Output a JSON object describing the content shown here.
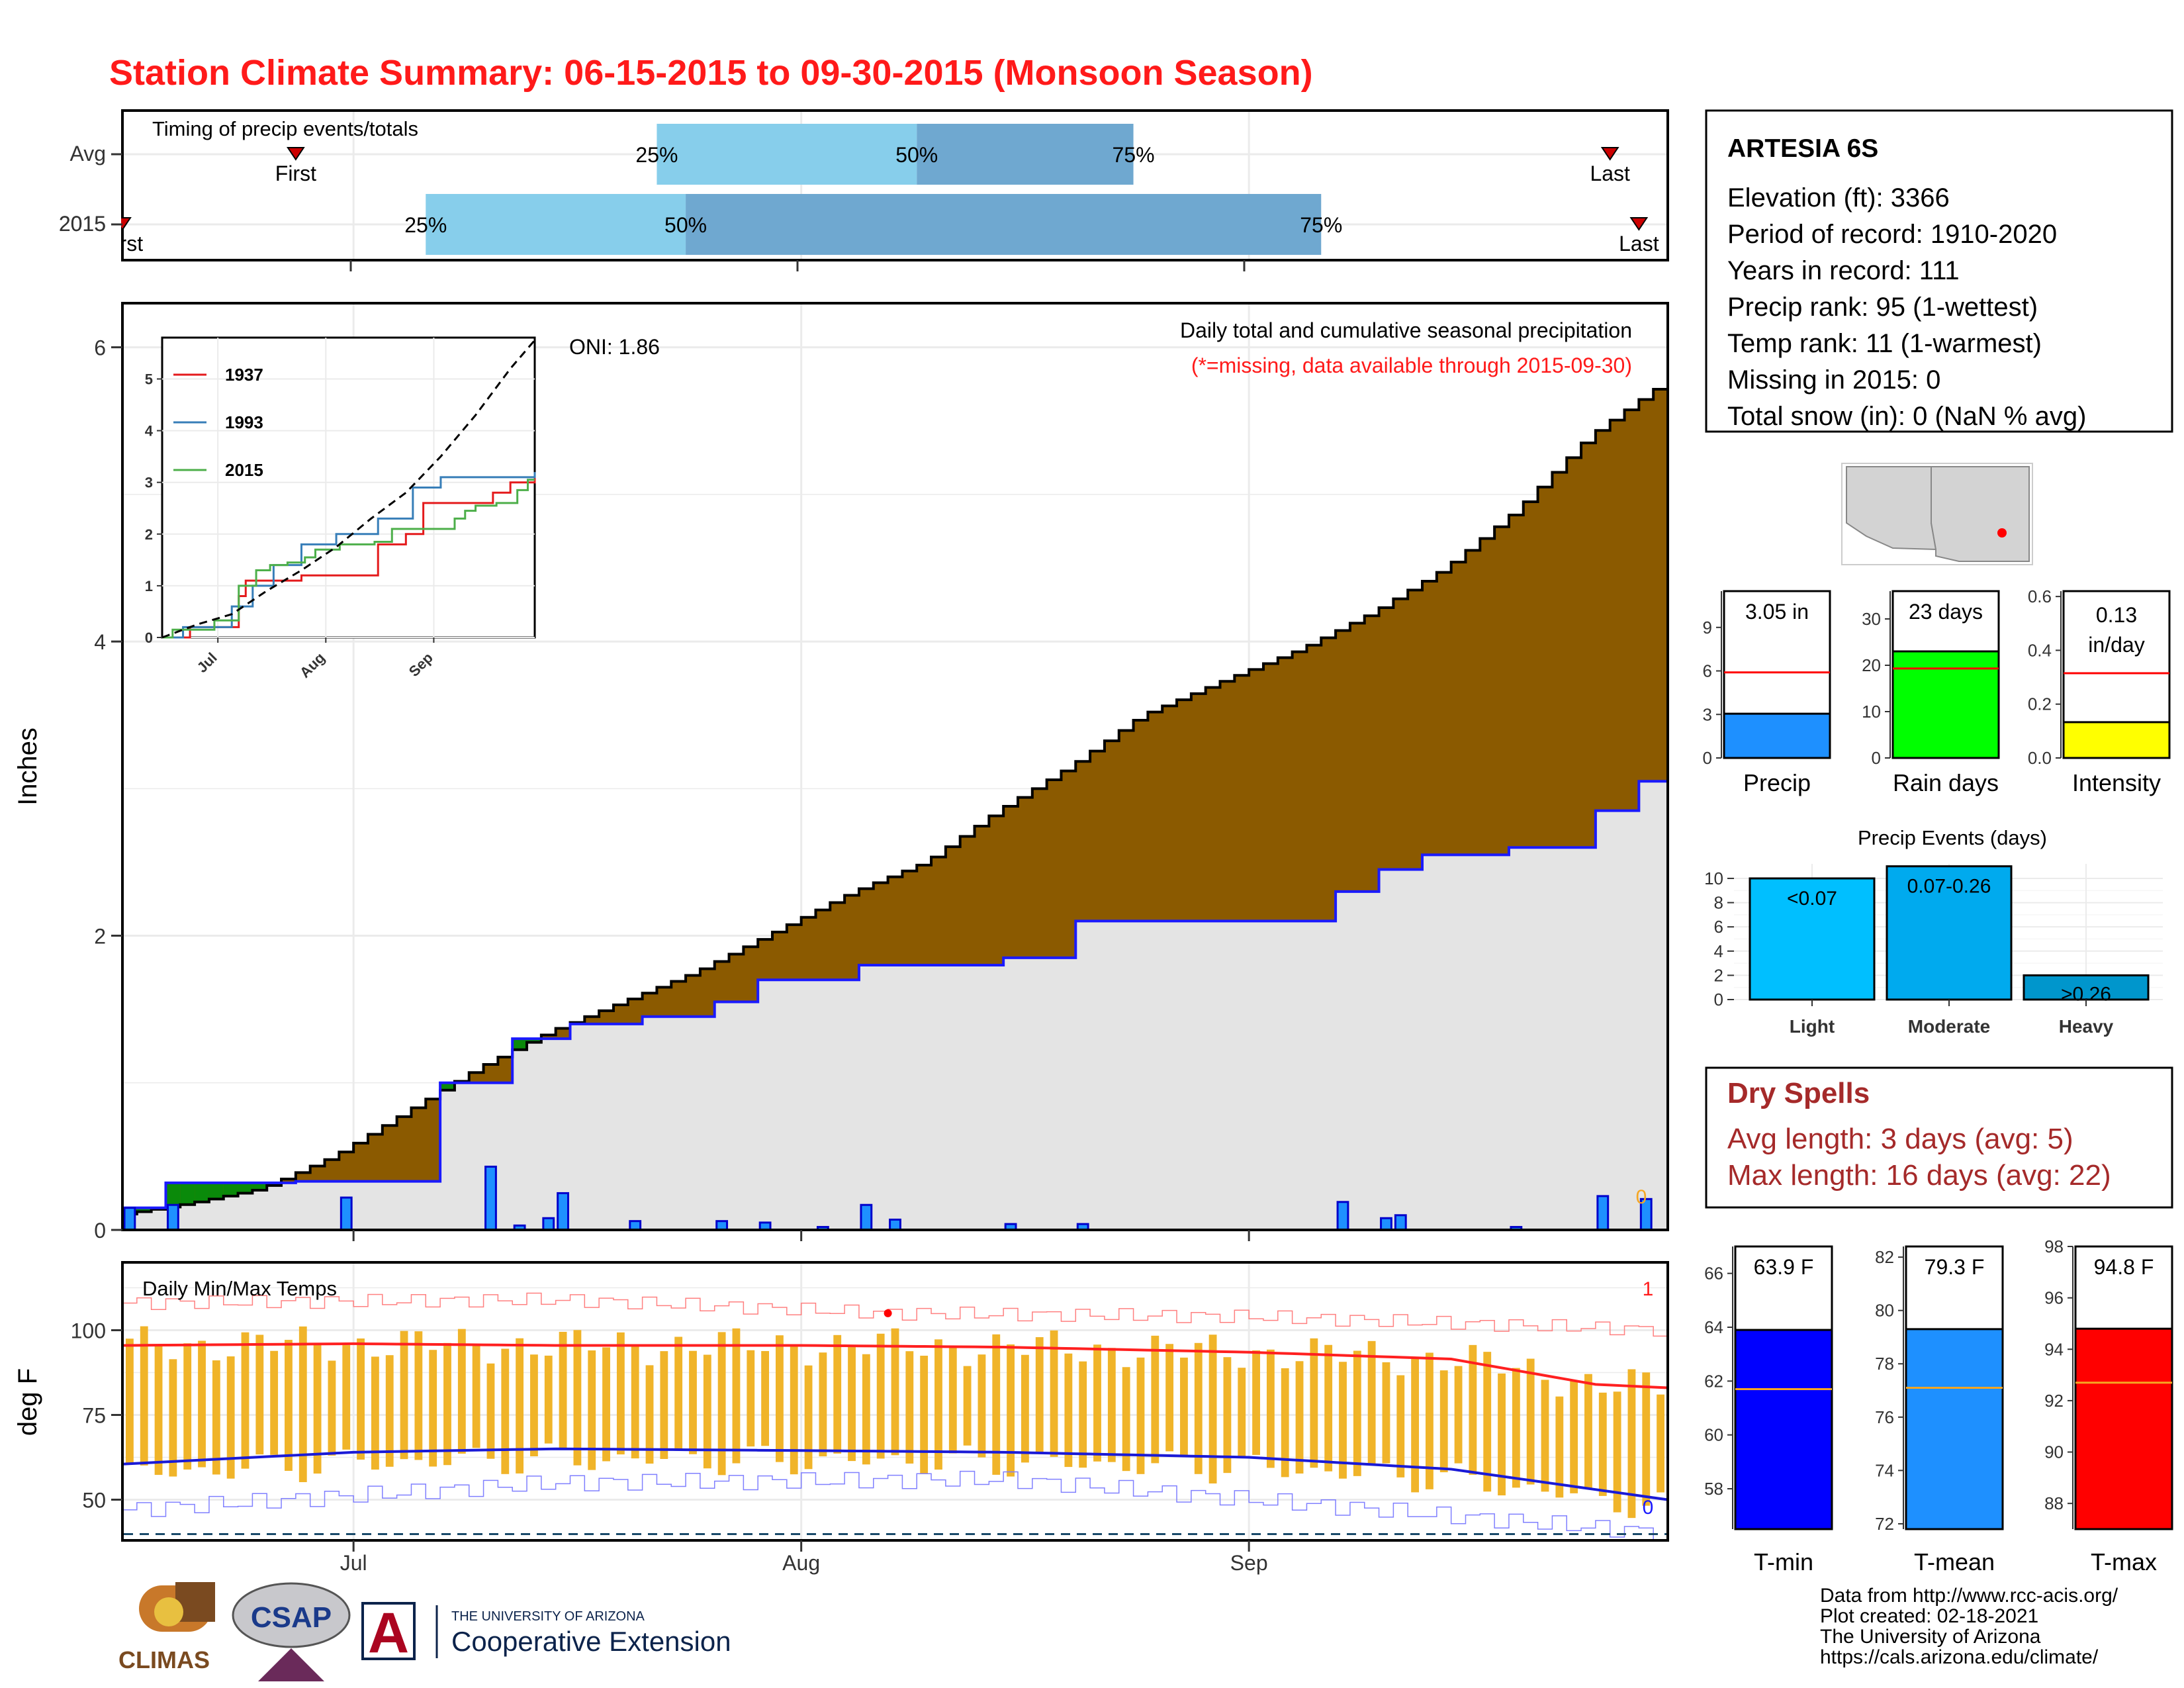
{
  "title": "Station Climate Summary: 06-15-2015 to 09-30-2015 (Monsoon Season)",
  "colors": {
    "title_red": "#ff1a1a",
    "cum_avg_fill": "#8b5a00",
    "cum_excess_fill": "#0a8a0a",
    "cum_obs_fill": "#e4e4e4",
    "daily_bar": "#1e90ff",
    "obs_line": "#1a1aff",
    "temp_bar": "#f0b429",
    "tmax_line": "#ff2020",
    "tmin_line": "#1a1ad6",
    "light_blue": "#87ceeb",
    "mid_blue": "#6fa8d0",
    "precip_bar": "#1e90ff",
    "raindays_bar": "#00ff00",
    "intensity_bar": "#ffff00",
    "events_light": "#00bfff",
    "events_moderate": "#00aaee",
    "events_heavy": "#0096cc",
    "tmin_bar": "#0000ff",
    "tmean_bar": "#1e90ff",
    "tmax_bar": "#ff0000",
    "dry_red": "#a52a2a"
  },
  "timing": {
    "title": "Timing of precip events/totals",
    "rows": [
      {
        "label": "Avg",
        "first_label": "First",
        "last_label": "Last",
        "first": "06-27",
        "last": "09-26",
        "q25": "07-22",
        "q50": "08-09",
        "q75": "08-24"
      },
      {
        "label": "2015",
        "first_label": "First",
        "last_label": "Last",
        "first": "06-15",
        "last": "09-28",
        "q25": "07-06",
        "q50": "07-24",
        "q75": "09-06"
      }
    ],
    "pct_labels": [
      "25%",
      "50%",
      "75%"
    ]
  },
  "precip_panel": {
    "ylabel": "Inches",
    "yticks": [
      "0",
      "2",
      "4",
      "6"
    ],
    "ylim": [
      0,
      6.3
    ],
    "annotation": "Daily total and cumulative seasonal precipitation",
    "missing_note": "(*=missing, data available through 2015-09-30)",
    "missing_count": "0",
    "oni": "ONI: 1.86"
  },
  "inset": {
    "yticks": [
      "0",
      "1",
      "2",
      "3",
      "4",
      "5"
    ],
    "xticks": [
      "Jul",
      "Aug",
      "Sep"
    ],
    "legend": [
      {
        "name": "1937",
        "color": "#e41a1c"
      },
      {
        "name": "1993",
        "color": "#377eb8"
      },
      {
        "name": "2015",
        "color": "#4daf4a"
      }
    ]
  },
  "temp_panel": {
    "title": "Daily Min/Max Temps",
    "ylabel": "deg F",
    "yticks": [
      "50",
      "75",
      "100"
    ],
    "count_max": "1",
    "count_min": "0"
  },
  "xaxis": {
    "ticks": [
      "Jul",
      "Aug",
      "Sep"
    ]
  },
  "station": {
    "name": "ARTESIA 6S",
    "lines": [
      "Elevation (ft): 3366",
      "Period of record: 1910-2020",
      "Years in record: 111",
      "Precip rank: 95 (1-wettest)",
      "Temp rank: 11 (1-warmest)",
      "Missing in 2015: 0",
      "Total snow (in): 0 (NaN % avg)"
    ]
  },
  "summary_bars": [
    {
      "label": "Precip",
      "value_text": "3.05 in",
      "value": 3.05,
      "avg": 5.9,
      "ymax": 11.5,
      "yticks": [
        "0",
        "3",
        "6",
        "9"
      ],
      "tickvals": [
        0,
        3,
        6,
        9
      ],
      "color": "#1e90ff"
    },
    {
      "label": "Rain days",
      "value_text": "23 days",
      "value": 23,
      "avg": 19.3,
      "ymax": 36,
      "yticks": [
        "0",
        "10",
        "20",
        "30"
      ],
      "tickvals": [
        0,
        10,
        20,
        30
      ],
      "color": "#00ff00"
    },
    {
      "label": "Intensity",
      "value_text_1": "0.13",
      "value_text_2": "in/day",
      "value": 0.133,
      "avg": 0.315,
      "ymax": 0.62,
      "yticks": [
        "0.0",
        "0.2",
        "0.4",
        "0.6"
      ],
      "tickvals": [
        0,
        0.2,
        0.4,
        0.6
      ],
      "color": "#ffff00"
    }
  ],
  "precip_events": {
    "title": "Precip Events (days)",
    "yticks": [
      "0",
      "2",
      "4",
      "6",
      "8",
      "10"
    ],
    "categories": [
      "Light",
      "Moderate",
      "Heavy"
    ],
    "labels": [
      "<0.07",
      "0.07-0.26",
      ">0.26"
    ],
    "values": [
      10,
      11,
      2
    ],
    "ymax": 11.2
  },
  "dry_spells": {
    "title": "Dry Spells",
    "avg_line": "Avg length: 3 days (avg: 5)",
    "max_line": "Max length: 16 days (avg: 22)"
  },
  "temp_bars": [
    {
      "label": "T-min",
      "value_text": "63.9 F",
      "value": 63.9,
      "avg": 61.7,
      "ymin": 56.5,
      "ymax": 67,
      "yticks": [
        "58",
        "60",
        "62",
        "64",
        "66"
      ],
      "tickvals": [
        58,
        60,
        62,
        64,
        66
      ],
      "color": "#0000ff"
    },
    {
      "label": "T-mean",
      "value_text": "79.3 F",
      "value": 79.3,
      "avg": 77.1,
      "ymin": 71.8,
      "ymax": 82.4,
      "yticks": [
        "72",
        "74",
        "76",
        "78",
        "80",
        "82"
      ],
      "tickvals": [
        72,
        74,
        76,
        78,
        80,
        82
      ],
      "color": "#1e90ff"
    },
    {
      "label": "T-max",
      "value_text": "94.8 F",
      "value": 94.8,
      "avg": 92.7,
      "ymin": 87,
      "ymax": 98,
      "yticks": [
        "88",
        "90",
        "92",
        "94",
        "96",
        "98"
      ],
      "tickvals": [
        88,
        90,
        92,
        94,
        96,
        98
      ],
      "color": "#ff0000"
    }
  ],
  "credits": [
    "Data from http://www.rcc-acis.org/",
    "Plot created: 02-18-2021",
    "The University of Arizona",
    "https://cals.arizona.edu/climate/"
  ],
  "logos": {
    "climas": "CLIMAS",
    "csap": "CSAP",
    "ua_letter": "A",
    "ua_small": "THE UNIVERSITY OF ARIZONA",
    "ua_big": "Cooperative Extension"
  },
  "chart_data": [
    {
      "type": "area",
      "title": "Daily total and cumulative seasonal precipitation",
      "ylabel": "Inches",
      "x_start": "2015-06-15",
      "x_end": "2015-09-30",
      "ylim": [
        0,
        6.3
      ],
      "series": [
        {
          "name": "cumulative average",
          "x": [
            "2015-06-15",
            "2015-06-20",
            "2015-06-25",
            "2015-06-30",
            "2015-07-05",
            "2015-07-10",
            "2015-07-15",
            "2015-07-20",
            "2015-07-25",
            "2015-07-31",
            "2015-08-05",
            "2015-08-10",
            "2015-08-15",
            "2015-08-20",
            "2015-08-25",
            "2015-08-31",
            "2015-09-05",
            "2015-09-10",
            "2015-09-15",
            "2015-09-20",
            "2015-09-25",
            "2015-09-30"
          ],
          "values": [
            0.1,
            0.18,
            0.28,
            0.5,
            0.8,
            1.1,
            1.35,
            1.55,
            1.75,
            2.05,
            2.3,
            2.5,
            2.85,
            3.15,
            3.5,
            3.75,
            3.95,
            4.2,
            4.5,
            4.9,
            5.4,
            5.75
          ]
        },
        {
          "name": "cumulative observed",
          "x": [
            "2015-06-15",
            "2015-06-18",
            "2015-06-27",
            "2015-07-07",
            "2015-07-12",
            "2015-07-16",
            "2015-07-21",
            "2015-07-26",
            "2015-07-29",
            "2015-08-05",
            "2015-08-15",
            "2015-08-20",
            "2015-09-07",
            "2015-09-10",
            "2015-09-13",
            "2015-09-19",
            "2015-09-25",
            "2015-09-28",
            "2015-09-30"
          ],
          "values": [
            0.15,
            0.32,
            0.33,
            1.0,
            1.3,
            1.4,
            1.45,
            1.55,
            1.7,
            1.8,
            1.85,
            2.1,
            2.3,
            2.45,
            2.55,
            2.6,
            2.85,
            3.05,
            3.05
          ]
        },
        {
          "name": "daily precipitation",
          "x": [
            "2015-06-15",
            "2015-06-18",
            "2015-06-30",
            "2015-07-10",
            "2015-07-12",
            "2015-07-14",
            "2015-07-15",
            "2015-07-20",
            "2015-07-26",
            "2015-07-29",
            "2015-08-05",
            "2015-08-15",
            "2015-08-20",
            "2015-08-02",
            "2015-08-07",
            "2015-09-07",
            "2015-09-10",
            "2015-09-11",
            "2015-09-19",
            "2015-09-25",
            "2015-09-28"
          ],
          "values": [
            0.15,
            0.17,
            0.22,
            0.43,
            0.03,
            0.08,
            0.25,
            0.06,
            0.06,
            0.05,
            0.17,
            0.04,
            0.04,
            0.02,
            0.07,
            0.19,
            0.08,
            0.1,
            0.02,
            0.23,
            0.21
          ]
        }
      ]
    },
    {
      "type": "line",
      "title": "Daily Min/Max Temps",
      "ylabel": "deg F",
      "x_start": "2015-06-15",
      "x_end": "2015-09-30",
      "ylim": [
        38,
        120
      ],
      "series": [
        {
          "name": "avg max",
          "x": [
            "2015-06-15",
            "2015-07-01",
            "2015-07-15",
            "2015-08-01",
            "2015-08-15",
            "2015-09-01",
            "2015-09-15",
            "2015-09-25",
            "2015-09-30"
          ],
          "values": [
            95.5,
            96,
            95.5,
            95.5,
            95,
            93.5,
            91.5,
            84,
            83
          ]
        },
        {
          "name": "avg min",
          "x": [
            "2015-06-15",
            "2015-07-01",
            "2015-07-15",
            "2015-08-01",
            "2015-08-15",
            "2015-09-01",
            "2015-09-15",
            "2015-09-25",
            "2015-09-30"
          ],
          "values": [
            60.5,
            64,
            65,
            64.5,
            64,
            62.5,
            59,
            53,
            50
          ]
        },
        {
          "name": "record high",
          "x": [
            "2015-06-15",
            "2015-07-15",
            "2015-08-07",
            "2015-09-01",
            "2015-09-30"
          ],
          "values": [
            108,
            109,
            105,
            104,
            100
          ]
        },
        {
          "name": "record low",
          "x": [
            "2015-06-15",
            "2015-07-15",
            "2015-08-15",
            "2015-09-01",
            "2015-09-30"
          ],
          "values": [
            47,
            55,
            56,
            50,
            40
          ]
        }
      ]
    },
    {
      "type": "bar",
      "categories": [
        "Precip"
      ],
      "values": [
        3.05
      ],
      "avg": 5.9
    },
    {
      "type": "bar",
      "categories": [
        "Rain days"
      ],
      "values": [
        23
      ],
      "avg": 19.3
    },
    {
      "type": "bar",
      "categories": [
        "Intensity"
      ],
      "values": [
        0.13
      ],
      "avg": 0.315
    },
    {
      "type": "bar",
      "title": "Precip Events (days)",
      "categories": [
        "Light",
        "Moderate",
        "Heavy"
      ],
      "values": [
        10,
        11,
        2
      ]
    },
    {
      "type": "bar",
      "categories": [
        "T-min",
        "T-mean",
        "T-max"
      ],
      "values": [
        63.9,
        79.3,
        94.8
      ],
      "avg": [
        61.7,
        77.1,
        92.7
      ]
    }
  ]
}
